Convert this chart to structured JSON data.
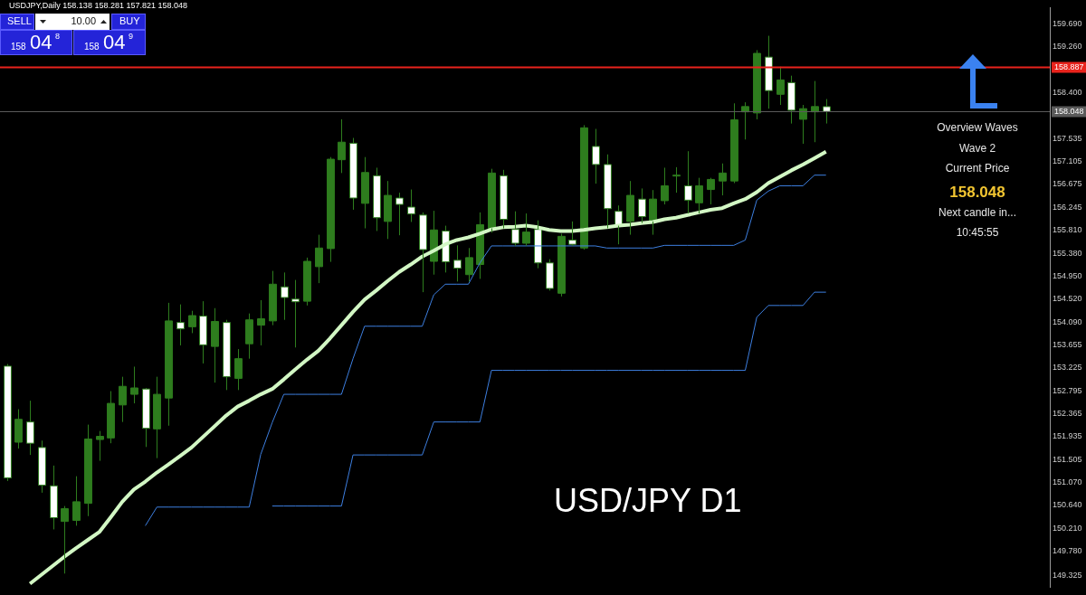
{
  "chart_data": {
    "type": "candlestick",
    "categories": [
      null,
      null,
      null,
      null,
      null,
      null,
      null,
      null,
      null,
      null,
      null,
      null,
      null,
      null,
      null,
      null,
      null,
      null,
      null,
      null,
      null,
      null,
      null,
      null,
      null,
      null,
      null,
      null,
      null,
      null,
      null,
      null,
      null,
      null,
      null,
      null,
      null,
      null,
      null,
      null,
      null,
      null,
      null,
      null,
      null,
      null,
      null,
      null,
      null,
      null,
      null,
      null,
      null,
      null,
      null,
      null,
      null,
      null,
      null,
      null,
      null,
      null,
      null,
      null,
      null,
      null,
      null,
      null,
      null,
      null,
      null,
      null
    ],
    "series": [
      {
        "type": "candlestick",
        "ohlc": [
          [
            153.26,
            153.3,
            151.1,
            151.16
          ],
          [
            151.83,
            152.45,
            151.71,
            152.26
          ],
          [
            152.21,
            152.61,
            151.59,
            151.81
          ],
          [
            151.73,
            151.86,
            150.88,
            151.02
          ],
          [
            151.01,
            151.39,
            150.19,
            150.41
          ],
          [
            150.34,
            150.63,
            149.36,
            150.58
          ],
          [
            150.36,
            151.19,
            150.26,
            150.71
          ],
          [
            150.68,
            152.16,
            150.44,
            151.89
          ],
          [
            151.88,
            152.04,
            151.48,
            151.94
          ],
          [
            151.91,
            152.79,
            151.81,
            152.56
          ],
          [
            152.53,
            153.06,
            152.21,
            152.88
          ],
          [
            152.73,
            153.25,
            152.56,
            152.85
          ],
          [
            152.83,
            152.85,
            151.74,
            152.09
          ],
          [
            152.08,
            153.06,
            151.53,
            152.73
          ],
          [
            152.66,
            154.45,
            152.14,
            154.11
          ],
          [
            154.08,
            154.42,
            153.65,
            153.96
          ],
          [
            154.0,
            154.3,
            153.88,
            154.21
          ],
          [
            154.2,
            154.48,
            153.31,
            153.66
          ],
          [
            153.63,
            154.35,
            152.95,
            154.1
          ],
          [
            154.08,
            154.13,
            152.81,
            153.06
          ],
          [
            153.03,
            153.58,
            152.81,
            153.4
          ],
          [
            153.68,
            154.25,
            153.4,
            154.13
          ],
          [
            154.03,
            154.5,
            153.65,
            154.15
          ],
          [
            154.11,
            155.05,
            154.03,
            154.8
          ],
          [
            154.75,
            155.02,
            154.13,
            154.55
          ],
          [
            154.52,
            154.88,
            153.61,
            154.47
          ],
          [
            154.48,
            155.3,
            154.4,
            155.23
          ],
          [
            155.13,
            155.73,
            154.82,
            155.48
          ],
          [
            155.47,
            157.19,
            155.22,
            157.15
          ],
          [
            157.14,
            157.9,
            156.89,
            157.47
          ],
          [
            157.45,
            157.55,
            156.2,
            156.42
          ],
          [
            156.32,
            157.19,
            155.85,
            156.9
          ],
          [
            156.84,
            156.99,
            155.8,
            156.05
          ],
          [
            155.98,
            156.74,
            155.65,
            156.47
          ],
          [
            156.42,
            156.52,
            155.72,
            156.3
          ],
          [
            156.25,
            156.58,
            155.97,
            156.12
          ],
          [
            156.1,
            156.15,
            154.65,
            155.45
          ],
          [
            155.23,
            156.18,
            154.98,
            155.82
          ],
          [
            155.8,
            155.9,
            155.02,
            155.22
          ],
          [
            155.25,
            155.53,
            154.85,
            155.1
          ],
          [
            154.98,
            155.48,
            154.85,
            155.3
          ],
          [
            155.17,
            156.15,
            154.9,
            155.92
          ],
          [
            155.85,
            156.97,
            155.77,
            156.89
          ],
          [
            156.84,
            156.95,
            155.85,
            156.02
          ],
          [
            155.83,
            156.17,
            155.52,
            155.57
          ],
          [
            155.57,
            156.13,
            155.52,
            155.78
          ],
          [
            155.83,
            156.0,
            155.1,
            155.2
          ],
          [
            155.2,
            155.27,
            154.68,
            154.72
          ],
          [
            154.63,
            155.75,
            154.57,
            155.7
          ],
          [
            155.63,
            155.98,
            155.52,
            155.55
          ],
          [
            155.48,
            157.79,
            155.45,
            157.74
          ],
          [
            157.39,
            157.72,
            156.69,
            157.05
          ],
          [
            157.05,
            157.24,
            155.85,
            156.22
          ],
          [
            156.17,
            156.28,
            155.55,
            155.9
          ],
          [
            155.98,
            156.74,
            155.73,
            156.47
          ],
          [
            156.4,
            156.6,
            155.95,
            156.07
          ],
          [
            155.98,
            156.57,
            155.73,
            156.4
          ],
          [
            156.37,
            156.99,
            156.3,
            156.65
          ],
          [
            156.84,
            157.0,
            156.52,
            156.85
          ],
          [
            156.65,
            157.3,
            156.13,
            156.38
          ],
          [
            156.33,
            156.8,
            156.13,
            156.65
          ],
          [
            156.58,
            156.8,
            156.3,
            156.77
          ],
          [
            156.74,
            157.07,
            156.47,
            156.89
          ],
          [
            156.74,
            158.2,
            156.7,
            157.89
          ],
          [
            158.04,
            158.22,
            157.52,
            158.14
          ],
          [
            158.02,
            159.2,
            157.9,
            159.14
          ],
          [
            159.07,
            159.47,
            158.1,
            158.44
          ],
          [
            158.37,
            158.89,
            158.17,
            158.64
          ],
          [
            158.59,
            158.72,
            157.82,
            158.07
          ],
          [
            157.9,
            158.17,
            157.44,
            158.1
          ],
          [
            158.04,
            158.62,
            157.47,
            158.14
          ],
          [
            158.138,
            158.281,
            157.821,
            158.048
          ]
        ],
        "colors": [
          "#ffffff",
          "#2e7d1e",
          "#ffffff",
          "#ffffff",
          "#ffffff",
          "#2e7d1e",
          "#2e7d1e",
          "#2e7d1e",
          "#2e7d1e",
          "#2e7d1e",
          "#2e7d1e",
          "#2e7d1e",
          "#ffffff",
          "#2e7d1e",
          "#2e7d1e",
          "#ffffff",
          "#2e7d1e",
          "#ffffff",
          "#2e7d1e",
          "#ffffff",
          "#2e7d1e",
          "#2e7d1e",
          "#2e7d1e",
          "#2e7d1e",
          "#ffffff",
          "#ffffff",
          "#2e7d1e",
          "#2e7d1e",
          "#2e7d1e",
          "#2e7d1e",
          "#ffffff",
          "#2e7d1e",
          "#ffffff",
          "#2e7d1e",
          "#ffffff",
          "#ffffff",
          "#ffffff",
          "#2e7d1e",
          "#ffffff",
          "#ffffff",
          "#2e7d1e",
          "#2e7d1e",
          "#2e7d1e",
          "#ffffff",
          "#ffffff",
          "#2e7d1e",
          "#ffffff",
          "#ffffff",
          "#2e7d1e",
          "#ffffff",
          "#2e7d1e",
          "#ffffff",
          "#ffffff",
          "#ffffff",
          "#2e7d1e",
          "#ffffff",
          "#2e7d1e",
          "#2e7d1e",
          "#2e7d1e",
          "#ffffff",
          "#2e7d1e",
          "#2e7d1e",
          "#2e7d1e",
          "#2e7d1e",
          "#2e7d1e",
          "#2e7d1e",
          "#ffffff",
          "#2e7d1e",
          "#ffffff",
          "#2e7d1e",
          "#2e7d1e",
          "#ffffff"
        ]
      },
      {
        "type": "line",
        "color": "#d2f7c4",
        "values": [
          null,
          null,
          149.17,
          149.34,
          149.51,
          149.68,
          149.84,
          149.99,
          150.14,
          150.42,
          150.71,
          150.94,
          151.09,
          151.26,
          151.41,
          151.57,
          151.73,
          151.93,
          152.13,
          152.33,
          152.5,
          152.61,
          152.73,
          152.83,
          153.01,
          153.2,
          153.38,
          153.55,
          153.78,
          154.03,
          154.28,
          154.51,
          154.68,
          154.86,
          155.03,
          155.17,
          155.32,
          155.43,
          155.55,
          155.63,
          155.68,
          155.75,
          155.83,
          155.87,
          155.88,
          155.9,
          155.87,
          155.82,
          155.8,
          155.8,
          155.82,
          155.85,
          155.87,
          155.9,
          155.92,
          155.95,
          155.97,
          156.02,
          156.05,
          156.1,
          156.15,
          156.2,
          156.23,
          156.32,
          156.4,
          156.53,
          156.7,
          156.82,
          156.94,
          157.05,
          157.17,
          157.29
        ]
      },
      {
        "type": "line",
        "color": "#3d7fe0",
        "values": [
          null,
          null,
          null,
          null,
          null,
          null,
          null,
          null,
          null,
          null,
          null,
          null,
          null,
          null,
          null,
          null,
          null,
          null,
          null,
          null,
          null,
          null,
          null,
          150.63,
          150.63,
          150.63,
          150.63,
          150.63,
          150.63,
          150.63,
          151.59,
          151.59,
          151.59,
          151.59,
          151.59,
          151.59,
          151.59,
          152.21,
          152.21,
          152.21,
          152.21,
          152.21,
          153.18,
          153.18,
          153.18,
          153.18,
          153.18,
          153.18,
          153.18,
          153.18,
          153.18,
          153.18,
          153.18,
          153.18,
          153.18,
          153.18,
          153.18,
          153.18,
          153.18,
          153.18,
          153.18,
          153.18,
          153.18,
          153.18,
          153.18,
          154.18,
          154.4,
          154.4,
          154.4,
          154.4,
          154.65,
          154.65
        ]
      },
      {
        "type": "line",
        "color": "#3d7fe0",
        "values": [
          null,
          null,
          null,
          null,
          null,
          null,
          null,
          null,
          null,
          null,
          null,
          null,
          150.26,
          150.61,
          150.61,
          150.61,
          150.61,
          150.61,
          150.61,
          150.61,
          150.61,
          150.61,
          151.6,
          152.2,
          152.73,
          152.73,
          152.73,
          152.73,
          152.73,
          152.73,
          153.4,
          154.01,
          154.01,
          154.01,
          154.01,
          154.01,
          154.01,
          154.6,
          154.8,
          154.8,
          154.8,
          155.2,
          155.52,
          155.52,
          155.52,
          155.52,
          155.52,
          155.52,
          155.52,
          155.52,
          155.52,
          155.52,
          155.48,
          155.48,
          155.48,
          155.48,
          155.48,
          155.53,
          155.53,
          155.53,
          155.53,
          155.53,
          155.53,
          155.53,
          155.63,
          156.38,
          156.55,
          156.65,
          156.65,
          156.65,
          156.85,
          156.85
        ]
      }
    ],
    "ylim": [
      149.1,
      160.0
    ],
    "yticks": [
      {
        "value": 159.69,
        "label": "159.690"
      },
      {
        "value": 159.26,
        "label": "159.260"
      },
      {
        "value": 158.4,
        "label": "158.400"
      },
      {
        "value": 157.535,
        "label": "157.535"
      },
      {
        "value": 157.105,
        "label": "157.105"
      },
      {
        "value": 156.675,
        "label": "156.675"
      },
      {
        "value": 156.245,
        "label": "156.245"
      },
      {
        "value": 155.81,
        "label": "155.810"
      },
      {
        "value": 155.38,
        "label": "155.380"
      },
      {
        "value": 154.95,
        "label": "154.950"
      },
      {
        "value": 154.52,
        "label": "154.520"
      },
      {
        "value": 154.09,
        "label": "154.090"
      },
      {
        "value": 153.655,
        "label": "153.655"
      },
      {
        "value": 153.225,
        "label": "153.225"
      },
      {
        "value": 152.795,
        "label": "152.795"
      },
      {
        "value": 152.365,
        "label": "152.365"
      },
      {
        "value": 151.935,
        "label": "151.935"
      },
      {
        "value": 151.505,
        "label": "151.505"
      },
      {
        "value": 151.07,
        "label": "151.070"
      },
      {
        "value": 150.64,
        "label": "150.640"
      },
      {
        "value": 150.21,
        "label": "150.210"
      },
      {
        "value": 149.78,
        "label": "149.780"
      },
      {
        "value": 149.325,
        "label": "149.325"
      }
    ],
    "ref_lines": [
      {
        "axis": "y",
        "value": 158.887,
        "label": "158.887",
        "color": "#e8231c"
      },
      {
        "axis": "y",
        "value": 158.048,
        "label": "158.048",
        "color": "#5a5a5a"
      }
    ],
    "tick_labels": "y",
    "annotations": [
      "USDJPY,Daily 158.138 158.281 157.821 158.048",
      "SELL",
      "10.00",
      "BUY",
      "158",
      "04",
      "8",
      "158",
      "04",
      "9",
      "Overview Waves",
      "Wave 2",
      "Current Price",
      "158.048",
      "Next candle in...",
      "10:45:55",
      "USD/JPY D1"
    ]
  }
}
